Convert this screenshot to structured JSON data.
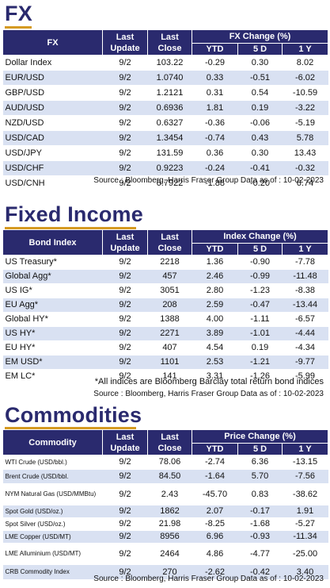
{
  "fx": {
    "title": "FX",
    "headers": {
      "name": "FX",
      "last_update": "Last Update",
      "last_close": "Last Close",
      "change_group": "FX Change (%)",
      "ytd": "YTD",
      "d5": "5 D",
      "y1": "1 Y"
    },
    "rows": [
      {
        "name": "Dollar Index",
        "update": "9/2",
        "close": "103.22",
        "ytd": "-0.29",
        "d5": "0.30",
        "y1": "8.02"
      },
      {
        "name": "EUR/USD",
        "update": "9/2",
        "close": "1.0740",
        "ytd": "0.33",
        "d5": "-0.51",
        "y1": "-6.02"
      },
      {
        "name": "GBP/USD",
        "update": "9/2",
        "close": "1.2121",
        "ytd": "0.31",
        "d5": "0.54",
        "y1": "-10.59"
      },
      {
        "name": "AUD/USD",
        "update": "9/2",
        "close": "0.6936",
        "ytd": "1.81",
        "d5": "0.19",
        "y1": "-3.22"
      },
      {
        "name": "NZD/USD",
        "update": "9/2",
        "close": "0.6327",
        "ytd": "-0.36",
        "d5": "-0.06",
        "y1": "-5.19"
      },
      {
        "name": "USD/CAD",
        "update": "9/2",
        "close": "1.3454",
        "ytd": "-0.74",
        "d5": "0.43",
        "y1": "5.78"
      },
      {
        "name": "USD/JPY",
        "update": "9/2",
        "close": "131.59",
        "ytd": "0.36",
        "d5": "0.30",
        "y1": "13.43"
      },
      {
        "name": "USD/CHF",
        "update": "9/2",
        "close": "0.9223",
        "ytd": "-0.24",
        "d5": "-0.41",
        "y1": "-0.32"
      },
      {
        "name": "USD/CNH",
        "update": "9/2",
        "close": "6.7922",
        "ytd": "-1.88",
        "d5": "-0.20",
        "y1": "6.74"
      }
    ],
    "source": "Source : Bloomberg, Harris Fraser Group Data as of : 10-02-2023"
  },
  "fixed_income": {
    "title": "Fixed Income",
    "headers": {
      "name": "Bond Index",
      "last_update": "Last Update",
      "last_close": "Last Close",
      "change_group": "Index Change (%)",
      "ytd": "YTD",
      "d5": "5 D",
      "y1": "1 Y"
    },
    "rows": [
      {
        "name": "US Treasury*",
        "update": "9/2",
        "close": "2218",
        "ytd": "1.36",
        "d5": "-0.90",
        "y1": "-7.78"
      },
      {
        "name": "Global Agg*",
        "update": "9/2",
        "close": "457",
        "ytd": "2.46",
        "d5": "-0.99",
        "y1": "-11.48"
      },
      {
        "name": "US IG*",
        "update": "9/2",
        "close": "3051",
        "ytd": "2.80",
        "d5": "-1.23",
        "y1": "-8.38"
      },
      {
        "name": "EU Agg*",
        "update": "9/2",
        "close": "208",
        "ytd": "2.59",
        "d5": "-0.47",
        "y1": "-13.44"
      },
      {
        "name": "Global HY*",
        "update": "9/2",
        "close": "1388",
        "ytd": "4.00",
        "d5": "-1.11",
        "y1": "-6.57"
      },
      {
        "name": "US HY*",
        "update": "9/2",
        "close": "2271",
        "ytd": "3.89",
        "d5": "-1.01",
        "y1": "-4.44"
      },
      {
        "name": "EU HY*",
        "update": "9/2",
        "close": "407",
        "ytd": "4.54",
        "d5": "0.19",
        "y1": "-4.34"
      },
      {
        "name": "EM USD*",
        "update": "9/2",
        "close": "1101",
        "ytd": "2.53",
        "d5": "-1.21",
        "y1": "-9.77"
      },
      {
        "name": "EM LC*",
        "update": "9/2",
        "close": "141",
        "ytd": "3.31",
        "d5": "-1.26",
        "y1": "-5.99"
      }
    ],
    "note": "*All indices are Bloomberg Barclay total return bond indices",
    "source": "Source : Bloomberg, Harris Fraser Group Data as of : 10-02-2023"
  },
  "commodities": {
    "title": "Commodities",
    "headers": {
      "name": "Commodity",
      "last_update": "Last Update",
      "last_close": "Last Close",
      "change_group": "Price Change (%)",
      "ytd": "YTD",
      "d5": "5 D",
      "y1": "1 Y"
    },
    "rows": [
      {
        "name": "WTI Crude (USD/bbl.)",
        "update": "9/2",
        "close": "78.06",
        "ytd": "-2.74",
        "d5": "6.36",
        "y1": "-13.15"
      },
      {
        "name": "Brent Crude (USD/bbl.",
        "update": "9/2",
        "close": "84.50",
        "ytd": "-1.64",
        "d5": "5.70",
        "y1": "-7.56"
      },
      {
        "name": "NYM Natural Gas (USD/MMBtu)",
        "update": "9/2",
        "close": "2.43",
        "ytd": "-45.70",
        "d5": "0.83",
        "y1": "-38.62"
      },
      {
        "name": "Spot Gold (USD/oz.)",
        "update": "9/2",
        "close": "1862",
        "ytd": "2.07",
        "d5": "-0.17",
        "y1": "1.91"
      },
      {
        "name": "Spot Silver (USD/oz.)",
        "update": "9/2",
        "close": "21.98",
        "ytd": "-8.25",
        "d5": "-1.68",
        "y1": "-5.27"
      },
      {
        "name": "LME Copper (USD/MT)",
        "update": "9/2",
        "close": "8956",
        "ytd": "6.96",
        "d5": "-0.93",
        "y1": "-11.34"
      },
      {
        "name": "LME Alluminium (USD/MT)",
        "update": "9/2",
        "close": "2464",
        "ytd": "4.86",
        "d5": "-4.77",
        "y1": "-25.00"
      },
      {
        "name": "CRB Commodity Index",
        "update": "9/2",
        "close": "270",
        "ytd": "-2.62",
        "d5": "-0.42",
        "y1": "3.40"
      }
    ],
    "source": "Source : Bloomberg, Harris Fraser Group Data as of : 10-02-2023"
  }
}
